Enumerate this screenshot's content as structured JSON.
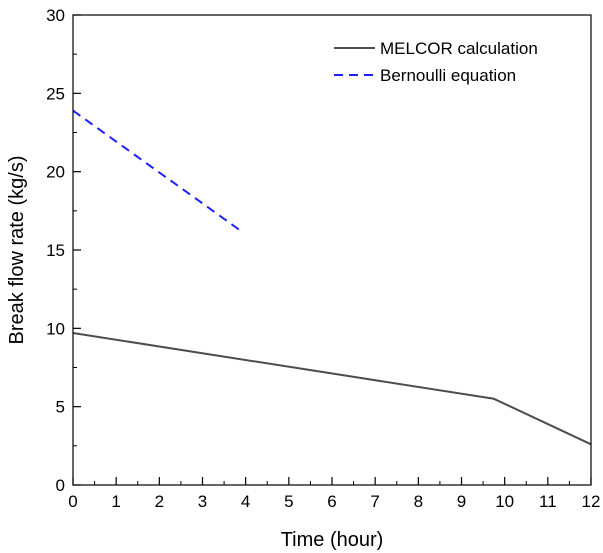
{
  "chart_data": {
    "type": "line",
    "title": "",
    "xlabel": "Time (hour)",
    "ylabel": "Break flow rate (kg/s)",
    "xlim": [
      0,
      12
    ],
    "ylim": [
      0,
      30
    ],
    "xticks": [
      0,
      1,
      2,
      3,
      4,
      5,
      6,
      7,
      8,
      9,
      10,
      11,
      12
    ],
    "yticks": [
      0,
      5,
      10,
      15,
      20,
      25,
      30
    ],
    "grid": false,
    "legend_position": "top-right",
    "series": [
      {
        "name": "MELCOR calculation",
        "color": "#4d4d4d",
        "style": "solid",
        "x": [
          0,
          9.75,
          12
        ],
        "y": [
          9.7,
          5.5,
          2.6
        ]
      },
      {
        "name": "Bernoulli equation",
        "color": "#1f1fff",
        "style": "dashed",
        "x": [
          0,
          3.9
        ],
        "y": [
          23.9,
          16.2
        ]
      }
    ]
  }
}
